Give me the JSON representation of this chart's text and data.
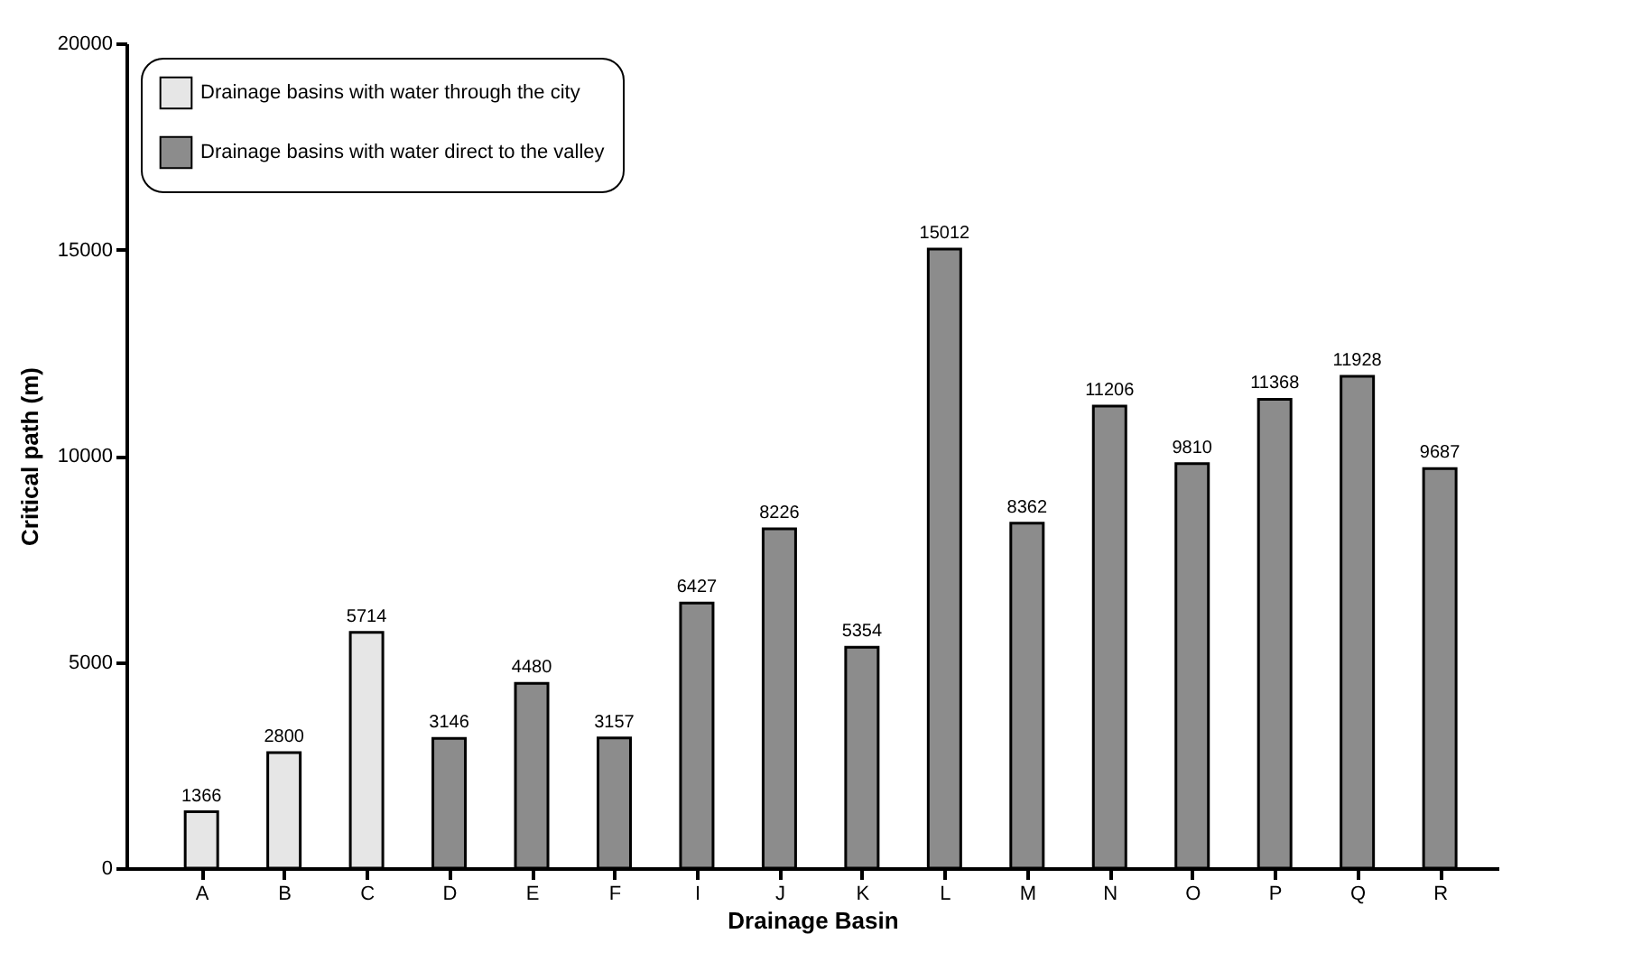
{
  "chart_data": {
    "type": "bar",
    "xlabel": "Drainage Basin",
    "ylabel": "Critical path (m)",
    "categories": [
      "A",
      "B",
      "C",
      "D",
      "E",
      "F",
      "I",
      "J",
      "K",
      "L",
      "M",
      "N",
      "O",
      "P",
      "Q",
      "R"
    ],
    "series": [
      {
        "name": "Drainage basins with water through the city",
        "color": "#e6e6e6",
        "values": [
          1366,
          2800,
          5714,
          null,
          null,
          null,
          null,
          null,
          null,
          null,
          null,
          null,
          null,
          null,
          null,
          null
        ]
      },
      {
        "name": "Drainage basins with water direct to the valley",
        "color": "#8c8c8c",
        "values": [
          null,
          null,
          null,
          3146,
          4480,
          3157,
          6427,
          8226,
          5354,
          15012,
          8362,
          11206,
          9810,
          11368,
          11928,
          9687
        ]
      }
    ],
    "ylim": [
      0,
      20000
    ],
    "yticks": [
      0,
      5000,
      10000,
      15000,
      20000
    ],
    "data_labels": true,
    "legend": "top left"
  }
}
